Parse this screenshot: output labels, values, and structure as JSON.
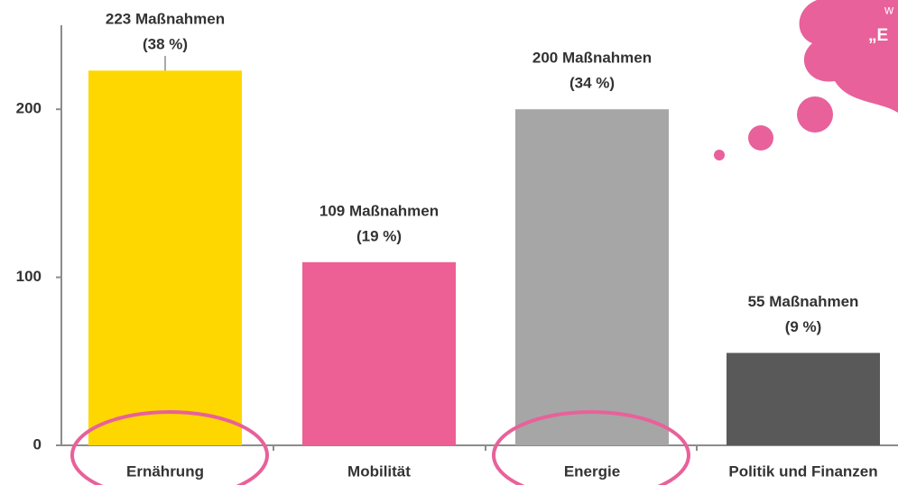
{
  "chart_data": {
    "type": "bar",
    "categories": [
      "Ernährung",
      "Mobilität",
      "Energie",
      "Politik und Finanzen"
    ],
    "values": [
      223,
      109,
      200,
      55
    ],
    "value_labels": [
      "223 Maßnahmen",
      "109 Maßnahmen",
      "200 Maßnahmen",
      "55 Maßnahmen"
    ],
    "share_labels": [
      "(38 %)",
      "(19 %)",
      "(34 %)",
      "(9 %)"
    ],
    "colors": [
      "#ffd700",
      "#ec6096",
      "#a6a6a6",
      "#595959"
    ],
    "ylim": [
      0,
      250
    ],
    "yticks": [
      0,
      100,
      200
    ],
    "bubble_text": [
      "w",
      "„E"
    ]
  }
}
